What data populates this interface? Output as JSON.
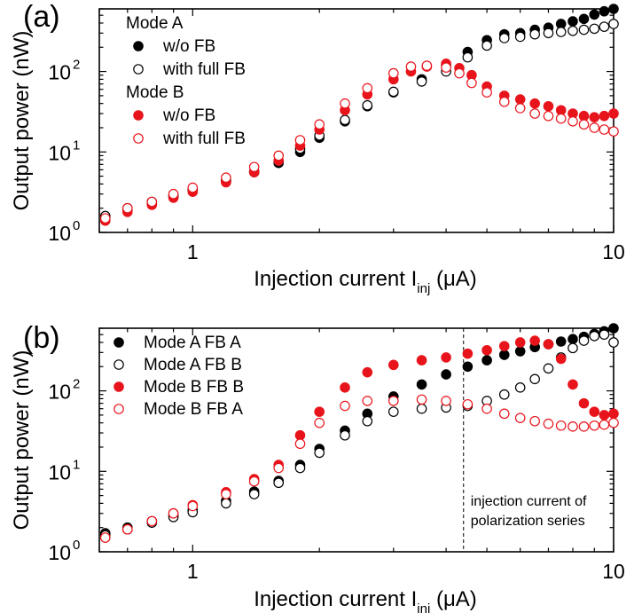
{
  "chart_data": [
    {
      "panel_label": "(a)",
      "type": "scatter",
      "xscale": "log",
      "yscale": "log",
      "xlim": [
        0.6,
        10
      ],
      "ylim": [
        1,
        600
      ],
      "xticks": [
        {
          "v": 1,
          "label": "1"
        },
        {
          "v": 10,
          "label": "10"
        }
      ],
      "yticks": [
        {
          "v": 1,
          "base": "10",
          "exp": "0"
        },
        {
          "v": 10,
          "base": "10",
          "exp": "1"
        },
        {
          "v": 100,
          "base": "10",
          "exp": "2"
        }
      ],
      "xlabel": {
        "main": "Injection current I",
        "sub": "inj",
        "unit": " (μA)"
      },
      "ylabel": "Output power (nW)",
      "legend_position": "top-left",
      "legend_groups": [
        {
          "title": "Mode A",
          "entries": [
            0,
            1
          ]
        },
        {
          "title": "Mode B",
          "entries": [
            2,
            3
          ]
        }
      ],
      "series": [
        {
          "name": "w/o FB",
          "color": "#000000",
          "filled": true,
          "x": [
            0.62,
            0.7,
            0.8,
            0.9,
            1.0,
            1.2,
            1.4,
            1.6,
            1.8,
            2.0,
            2.3,
            2.6,
            3.0,
            3.5,
            4.0,
            4.5,
            5.0,
            5.5,
            6.0,
            6.5,
            7.0,
            7.5,
            8.0,
            8.5,
            9.0,
            9.5,
            10.0
          ],
          "y": [
            1.5,
            1.9,
            2.3,
            2.8,
            3.3,
            4.3,
            5.6,
            7.3,
            10,
            15,
            24,
            37,
            55,
            80,
            120,
            175,
            245,
            290,
            300,
            330,
            350,
            390,
            420,
            450,
            510,
            560,
            600
          ]
        },
        {
          "name": "with full FB",
          "color": "#000000",
          "filled": false,
          "x": [
            0.62,
            0.7,
            0.8,
            0.9,
            1.0,
            1.2,
            1.4,
            1.6,
            1.8,
            2.0,
            2.3,
            2.6,
            3.0,
            3.5,
            4.0,
            4.5,
            5.0,
            5.5,
            6.0,
            6.5,
            7.0,
            7.5,
            8.0,
            8.5,
            9.0,
            9.5,
            10.0
          ],
          "y": [
            1.6,
            2.0,
            2.4,
            2.9,
            3.4,
            4.4,
            5.7,
            7.6,
            11,
            16,
            25,
            38,
            56,
            75,
            100,
            150,
            210,
            260,
            270,
            290,
            300,
            310,
            320,
            330,
            340,
            360,
            390
          ]
        },
        {
          "name": "w/o FB",
          "color": "#e8141b",
          "filled": true,
          "x": [
            0.62,
            0.7,
            0.8,
            0.9,
            1.0,
            1.2,
            1.4,
            1.6,
            1.8,
            2.0,
            2.3,
            2.6,
            3.0,
            3.3,
            3.6,
            4.0,
            4.3,
            4.6,
            5.0,
            5.5,
            6.0,
            6.5,
            7.0,
            7.5,
            8.0,
            8.5,
            9.0,
            9.5,
            10.0
          ],
          "y": [
            1.4,
            1.8,
            2.2,
            2.7,
            3.2,
            4.2,
            5.6,
            7.8,
            12,
            19,
            33,
            52,
            80,
            100,
            115,
            125,
            110,
            90,
            65,
            50,
            45,
            40,
            37,
            33,
            30,
            28,
            27,
            28,
            30
          ]
        },
        {
          "name": "with full FB",
          "color": "#e8141b",
          "filled": false,
          "x": [
            0.62,
            0.7,
            0.8,
            0.9,
            1.0,
            1.2,
            1.4,
            1.6,
            1.8,
            2.0,
            2.3,
            2.6,
            3.0,
            3.3,
            3.6,
            4.0,
            4.3,
            4.6,
            5.0,
            5.5,
            6.0,
            6.5,
            7.0,
            7.5,
            8.0,
            8.5,
            9.0,
            9.5,
            10.0
          ],
          "y": [
            1.5,
            2.0,
            2.4,
            3.0,
            3.6,
            4.8,
            6.5,
            9,
            14,
            22,
            40,
            62,
            95,
            115,
            118,
            112,
            95,
            72,
            55,
            42,
            35,
            30,
            28,
            26,
            24,
            22,
            20,
            19,
            18
          ]
        }
      ]
    },
    {
      "panel_label": "(b)",
      "type": "scatter",
      "xscale": "log",
      "yscale": "log",
      "xlim": [
        0.6,
        10
      ],
      "ylim": [
        1,
        600
      ],
      "xticks": [
        {
          "v": 1,
          "label": "1"
        },
        {
          "v": 10,
          "label": "10"
        }
      ],
      "yticks": [
        {
          "v": 1,
          "base": "10",
          "exp": "0"
        },
        {
          "v": 10,
          "base": "10",
          "exp": "1"
        },
        {
          "v": 100,
          "base": "10",
          "exp": "2"
        }
      ],
      "xlabel": {
        "main": "Injection current I",
        "sub": "inj",
        "unit": " (μA)"
      },
      "ylabel": "Output power (nW)",
      "legend_position": "top-left",
      "vline": {
        "x": 4.4,
        "annotation": [
          "injection current of",
          "polarization series"
        ]
      },
      "series": [
        {
          "name": "Mode A FB A",
          "color": "#000000",
          "filled": true,
          "x": [
            0.62,
            0.7,
            0.8,
            0.9,
            1.0,
            1.2,
            1.4,
            1.6,
            1.8,
            2.0,
            2.3,
            2.6,
            3.0,
            3.5,
            4.0,
            4.5,
            5.0,
            5.5,
            6.0,
            6.5,
            7.0,
            7.5,
            8.0,
            8.5,
            9.0,
            9.5,
            10.0
          ],
          "y": [
            1.7,
            2.0,
            2.4,
            2.8,
            3.3,
            4.3,
            5.6,
            7.6,
            12,
            19,
            32,
            52,
            85,
            120,
            160,
            200,
            240,
            280,
            310,
            350,
            380,
            410,
            440,
            470,
            510,
            550,
            600
          ]
        },
        {
          "name": "Mode A FB B",
          "color": "#000000",
          "filled": false,
          "x": [
            0.62,
            0.7,
            0.8,
            0.9,
            1.0,
            1.2,
            1.4,
            1.6,
            1.8,
            2.0,
            2.3,
            2.6,
            3.0,
            3.5,
            4.0,
            4.5,
            5.0,
            5.5,
            6.0,
            6.5,
            7.0,
            7.5,
            8.0,
            8.5,
            9.0,
            9.5,
            10.0
          ],
          "y": [
            1.6,
            1.9,
            2.3,
            2.7,
            3.1,
            4.0,
            5.2,
            7.2,
            11,
            17,
            28,
            42,
            55,
            60,
            62,
            65,
            75,
            90,
            110,
            140,
            190,
            260,
            340,
            420,
            480,
            500,
            400
          ]
        },
        {
          "name": "Mode B FB B",
          "color": "#e8141b",
          "filled": true,
          "x": [
            0.62,
            0.7,
            0.8,
            0.9,
            1.0,
            1.2,
            1.4,
            1.6,
            1.8,
            2.0,
            2.3,
            2.6,
            3.0,
            3.5,
            4.0,
            4.5,
            5.0,
            5.5,
            6.0,
            6.5,
            7.0,
            7.5,
            8.0,
            8.5,
            9.0,
            9.5,
            10.0
          ],
          "y": [
            1.5,
            1.9,
            2.4,
            3.0,
            3.8,
            5.5,
            8,
            12,
            28,
            55,
            110,
            170,
            210,
            240,
            260,
            290,
            320,
            360,
            400,
            420,
            380,
            250,
            120,
            70,
            55,
            50,
            52
          ]
        },
        {
          "name": "Mode B FB A",
          "color": "#e8141b",
          "filled": false,
          "x": [
            0.62,
            0.7,
            0.8,
            0.9,
            1.0,
            1.2,
            1.4,
            1.6,
            1.8,
            2.0,
            2.3,
            2.6,
            3.0,
            3.5,
            4.0,
            4.5,
            5.0,
            5.5,
            6.0,
            6.5,
            7.0,
            7.5,
            8.0,
            8.5,
            9.0,
            9.5,
            10.0
          ],
          "y": [
            1.5,
            1.9,
            2.4,
            3.0,
            3.7,
            5.2,
            7.5,
            11,
            22,
            40,
            65,
            75,
            75,
            78,
            75,
            68,
            60,
            52,
            46,
            42,
            39,
            37,
            36,
            36,
            37,
            38,
            40
          ]
        }
      ]
    }
  ]
}
